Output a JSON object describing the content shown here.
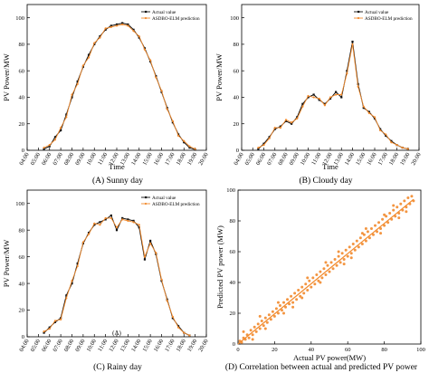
{
  "figure": {
    "captions": [
      "(A) Sunny day",
      "(B) Cloudy day",
      "(C) Rainy day",
      "(D) Correlation between actual and predicted PV power"
    ]
  },
  "colors": {
    "actual": "#111111",
    "prediction": "#f28a2c",
    "scatter": "#f28a2c",
    "fit_line": "#f28a2c"
  },
  "chart_data": [
    {
      "type": "line",
      "caption": "(A) Sunny day",
      "xlabel": "Time",
      "ylabel": "PV Power/MW",
      "ylim": [
        0,
        110
      ],
      "yticks": [
        0,
        20,
        40,
        60,
        80,
        100
      ],
      "xticks": [
        "04:00",
        "05:00",
        "06:00",
        "07:00",
        "08:00",
        "09:00",
        "10:00",
        "11:00",
        "12:00",
        "13:00",
        "14:00",
        "15:00",
        "16:00",
        "17:00",
        "18:00",
        "19:00",
        "20:00"
      ],
      "legend": "top-right",
      "series": [
        {
          "name": "Actual value",
          "values": [
            [
              5.5,
              1
            ],
            [
              6,
              3
            ],
            [
              6.5,
              10
            ],
            [
              7,
              15
            ],
            [
              7.5,
              27
            ],
            [
              8,
              40
            ],
            [
              8.5,
              52
            ],
            [
              9,
              63
            ],
            [
              9.5,
              72
            ],
            [
              10,
              80
            ],
            [
              10.5,
              86
            ],
            [
              11,
              91
            ],
            [
              11.5,
              94
            ],
            [
              12,
              95
            ],
            [
              12.5,
              96
            ],
            [
              13,
              95
            ],
            [
              13.5,
              91
            ],
            [
              14,
              85
            ],
            [
              14.5,
              77
            ],
            [
              15,
              67
            ],
            [
              15.5,
              56
            ],
            [
              16,
              44
            ],
            [
              16.5,
              32
            ],
            [
              17,
              21
            ],
            [
              17.5,
              12
            ],
            [
              18,
              6
            ],
            [
              18.5,
              2
            ],
            [
              19,
              0.5
            ]
          ]
        },
        {
          "name": "ASDBO-ELM prediction",
          "values": [
            [
              5.5,
              2
            ],
            [
              6,
              4
            ],
            [
              6.5,
              8
            ],
            [
              7,
              17
            ],
            [
              7.5,
              25
            ],
            [
              8,
              42
            ],
            [
              8.5,
              50
            ],
            [
              9,
              64
            ],
            [
              9.5,
              70
            ],
            [
              10,
              81
            ],
            [
              10.5,
              85
            ],
            [
              11,
              92
            ],
            [
              11.5,
              93
            ],
            [
              12,
              94
            ],
            [
              12.5,
              95
            ],
            [
              13,
              94
            ],
            [
              13.5,
              90
            ],
            [
              14,
              86
            ],
            [
              14.5,
              76
            ],
            [
              15,
              68
            ],
            [
              15.5,
              55
            ],
            [
              16,
              45
            ],
            [
              16.5,
              31
            ],
            [
              17,
              22
            ],
            [
              17.5,
              11
            ],
            [
              18,
              7
            ],
            [
              18.5,
              3
            ],
            [
              19,
              1
            ]
          ]
        }
      ]
    },
    {
      "type": "line",
      "caption": "(B) Cloudy day",
      "xlabel": "Time",
      "ylabel": "PV Power/MW",
      "ylim": [
        0,
        110
      ],
      "yticks": [
        0,
        20,
        40,
        60,
        80,
        100
      ],
      "xticks": [
        "04:00",
        "05:00",
        "06:00",
        "07:00",
        "08:00",
        "09:00",
        "10:00",
        "11:00",
        "12:00",
        "13:00",
        "14:00",
        "15:00",
        "16:00",
        "17:00",
        "18:00",
        "19:00",
        "20:00"
      ],
      "legend": "top-right",
      "series": [
        {
          "name": "Actual value",
          "values": [
            [
              5.5,
              1
            ],
            [
              6,
              5
            ],
            [
              6.5,
              10
            ],
            [
              7,
              16
            ],
            [
              7.5,
              18
            ],
            [
              8,
              22
            ],
            [
              8.5,
              20
            ],
            [
              9,
              25
            ],
            [
              9.5,
              35
            ],
            [
              10,
              40
            ],
            [
              10.5,
              42
            ],
            [
              11,
              38
            ],
            [
              11.5,
              35
            ],
            [
              12,
              39
            ],
            [
              12.5,
              44
            ],
            [
              13,
              40
            ],
            [
              13.5,
              60
            ],
            [
              14,
              82
            ],
            [
              14.5,
              50
            ],
            [
              15,
              32
            ],
            [
              15.5,
              29
            ],
            [
              16,
              24
            ],
            [
              16.5,
              16
            ],
            [
              17,
              11
            ],
            [
              17.5,
              7
            ],
            [
              18,
              4
            ],
            [
              18.5,
              2
            ],
            [
              19,
              1
            ]
          ]
        },
        {
          "name": "ASDBO-ELM prediction",
          "values": [
            [
              5.5,
              2
            ],
            [
              6,
              4
            ],
            [
              6.5,
              9
            ],
            [
              7,
              17
            ],
            [
              7.5,
              17
            ],
            [
              8,
              23
            ],
            [
              8.5,
              21
            ],
            [
              9,
              24
            ],
            [
              9.5,
              33
            ],
            [
              10,
              41
            ],
            [
              10.5,
              40
            ],
            [
              11,
              39
            ],
            [
              11.5,
              34
            ],
            [
              12,
              40
            ],
            [
              12.5,
              42
            ],
            [
              13,
              42
            ],
            [
              13.5,
              58
            ],
            [
              14,
              80
            ],
            [
              14.5,
              48
            ],
            [
              15,
              33
            ],
            [
              15.5,
              28
            ],
            [
              16,
              25
            ],
            [
              16.5,
              15
            ],
            [
              17,
              12
            ],
            [
              17.5,
              6
            ],
            [
              18,
              4
            ],
            [
              18.5,
              2
            ],
            [
              19,
              1
            ]
          ]
        }
      ]
    },
    {
      "type": "line",
      "caption": "(C) Rainy day",
      "xlabel": "(A)",
      "ylabel": "PV Power/MW",
      "ylim": [
        0,
        110
      ],
      "yticks": [
        0,
        20,
        40,
        60,
        80,
        100
      ],
      "xticks": [
        "04:00",
        "05:00",
        "06:00",
        "07:00",
        "08:00",
        "09:00",
        "10:00",
        "11:00",
        "12:00",
        "13:00",
        "14:00",
        "15:00",
        "16:00",
        "17:00",
        "18:00",
        "19:00",
        "20:00"
      ],
      "legend": "top-right",
      "series": [
        {
          "name": "Actual value",
          "values": [
            [
              5.5,
              3
            ],
            [
              6,
              7
            ],
            [
              6.5,
              11
            ],
            [
              7,
              14
            ],
            [
              7.5,
              31
            ],
            [
              8,
              40
            ],
            [
              8.5,
              55
            ],
            [
              9,
              70
            ],
            [
              9.5,
              78
            ],
            [
              10,
              84
            ],
            [
              10.5,
              86
            ],
            [
              11,
              88
            ],
            [
              11.5,
              91
            ],
            [
              12,
              80
            ],
            [
              12.5,
              89
            ],
            [
              13,
              88
            ],
            [
              13.5,
              87
            ],
            [
              14,
              82
            ],
            [
              14.5,
              58
            ],
            [
              15,
              72
            ],
            [
              15.5,
              62
            ],
            [
              16,
              42
            ],
            [
              16.5,
              28
            ],
            [
              17,
              14
            ],
            [
              17.5,
              8
            ],
            [
              18,
              3
            ],
            [
              18.5,
              1
            ]
          ]
        },
        {
          "name": "ASDBO-ELM prediction",
          "values": [
            [
              5.5,
              4
            ],
            [
              6,
              6
            ],
            [
              6.5,
              12
            ],
            [
              7,
              13
            ],
            [
              7.5,
              29
            ],
            [
              8,
              42
            ],
            [
              8.5,
              53
            ],
            [
              9,
              71
            ],
            [
              9.5,
              77
            ],
            [
              10,
              85
            ],
            [
              10.5,
              84
            ],
            [
              11,
              89
            ],
            [
              11.5,
              89
            ],
            [
              12,
              82
            ],
            [
              12.5,
              88
            ],
            [
              13,
              87
            ],
            [
              13.5,
              86
            ],
            [
              14,
              84
            ],
            [
              14.5,
              60
            ],
            [
              15,
              70
            ],
            [
              15.5,
              63
            ],
            [
              16,
              43
            ],
            [
              16.5,
              27
            ],
            [
              17,
              15
            ],
            [
              17.5,
              7
            ],
            [
              18,
              3
            ],
            [
              18.5,
              1
            ]
          ]
        }
      ]
    },
    {
      "type": "scatter",
      "caption": "(D) Correlation between actual and predicted PV power",
      "xlabel": "Actual PV power(MW)",
      "ylabel": "Predicted PV power (MW)",
      "xlim": [
        0,
        100
      ],
      "ylim": [
        0,
        100
      ],
      "xticks": [
        0,
        20,
        40,
        60,
        80,
        100
      ],
      "yticks": [
        0,
        20,
        40,
        60,
        80,
        100
      ],
      "fit_line": [
        [
          0,
          0
        ],
        [
          96,
          94
        ]
      ],
      "points": [
        [
          1,
          2
        ],
        [
          2,
          1
        ],
        [
          3,
          4
        ],
        [
          4,
          3
        ],
        [
          5,
          6
        ],
        [
          6,
          4
        ],
        [
          7,
          9
        ],
        [
          8,
          6
        ],
        [
          9,
          11
        ],
        [
          10,
          8
        ],
        [
          11,
          13
        ],
        [
          12,
          10
        ],
        [
          13,
          15
        ],
        [
          14,
          12
        ],
        [
          15,
          17
        ],
        [
          16,
          14
        ],
        [
          17,
          19
        ],
        [
          18,
          16
        ],
        [
          19,
          21
        ],
        [
          20,
          18
        ],
        [
          21,
          23
        ],
        [
          22,
          20
        ],
        [
          23,
          25
        ],
        [
          24,
          22
        ],
        [
          25,
          27
        ],
        [
          26,
          24
        ],
        [
          27,
          29
        ],
        [
          28,
          26
        ],
        [
          29,
          31
        ],
        [
          30,
          27
        ],
        [
          31,
          33
        ],
        [
          32,
          29
        ],
        [
          33,
          35
        ],
        [
          34,
          31
        ],
        [
          35,
          37
        ],
        [
          36,
          33
        ],
        [
          37,
          39
        ],
        [
          38,
          35
        ],
        [
          39,
          41
        ],
        [
          40,
          37
        ],
        [
          41,
          43
        ],
        [
          42,
          39
        ],
        [
          43,
          45
        ],
        [
          44,
          41
        ],
        [
          45,
          47
        ],
        [
          46,
          43
        ],
        [
          47,
          49
        ],
        [
          48,
          45
        ],
        [
          49,
          51
        ],
        [
          50,
          47
        ],
        [
          51,
          53
        ],
        [
          52,
          49
        ],
        [
          53,
          55
        ],
        [
          54,
          51
        ],
        [
          55,
          57
        ],
        [
          56,
          53
        ],
        [
          57,
          59
        ],
        [
          58,
          55
        ],
        [
          59,
          61
        ],
        [
          60,
          57
        ],
        [
          61,
          63
        ],
        [
          62,
          59
        ],
        [
          63,
          65
        ],
        [
          64,
          61
        ],
        [
          65,
          67
        ],
        [
          66,
          63
        ],
        [
          67,
          69
        ],
        [
          68,
          65
        ],
        [
          69,
          71
        ],
        [
          70,
          67
        ],
        [
          71,
          73
        ],
        [
          72,
          69
        ],
        [
          73,
          75
        ],
        [
          74,
          71
        ],
        [
          75,
          77
        ],
        [
          76,
          73
        ],
        [
          77,
          79
        ],
        [
          78,
          75
        ],
        [
          79,
          81
        ],
        [
          80,
          77
        ],
        [
          81,
          83
        ],
        [
          82,
          79
        ],
        [
          83,
          85
        ],
        [
          84,
          81
        ],
        [
          85,
          87
        ],
        [
          86,
          83
        ],
        [
          87,
          89
        ],
        [
          88,
          85
        ],
        [
          89,
          91
        ],
        [
          90,
          87
        ],
        [
          91,
          93
        ],
        [
          92,
          89
        ],
        [
          93,
          95
        ],
        [
          94,
          91
        ],
        [
          95,
          96
        ],
        [
          96,
          93
        ],
        [
          3,
          8
        ],
        [
          8,
          3
        ],
        [
          15,
          10
        ],
        [
          22,
          27
        ],
        [
          30,
          24
        ],
        [
          38,
          43
        ],
        [
          45,
          40
        ],
        [
          55,
          60
        ],
        [
          62,
          56
        ],
        [
          70,
          75
        ],
        [
          78,
          72
        ],
        [
          85,
          90
        ],
        [
          92,
          86
        ],
        [
          12,
          18
        ],
        [
          25,
          20
        ],
        [
          35,
          30
        ],
        [
          48,
          53
        ],
        [
          58,
          52
        ],
        [
          68,
          72
        ],
        [
          80,
          84
        ],
        [
          88,
          82
        ]
      ]
    }
  ]
}
